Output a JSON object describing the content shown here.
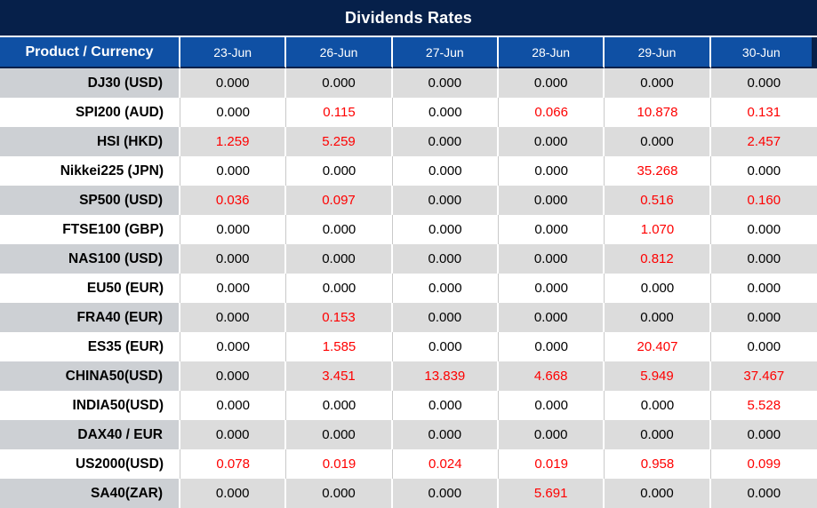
{
  "title": "Dividends Rates",
  "colors": {
    "title_bar_navy": "#06204a",
    "header_blue": "#0f50a4",
    "gray_row_product": "#cdd0d4",
    "gray_row_value": "#dcdcdc",
    "highlight_red": "#fe0000",
    "text_black": "#000000"
  },
  "table": {
    "header": {
      "product_label": "Product / Currency",
      "dates": [
        "23-Jun",
        "26-Jun",
        "27-Jun",
        "28-Jun",
        "29-Jun",
        "30-Jun"
      ]
    },
    "rows": [
      {
        "product": "DJ30 (USD)",
        "values": [
          "0.000",
          "0.000",
          "0.000",
          "0.000",
          "0.000",
          "0.000"
        ],
        "red": [
          false,
          false,
          false,
          false,
          false,
          false
        ]
      },
      {
        "product": "SPI200 (AUD)",
        "values": [
          "0.000",
          "0.115",
          "0.000",
          "0.066",
          "10.878",
          "0.131"
        ],
        "red": [
          false,
          true,
          false,
          true,
          true,
          true
        ]
      },
      {
        "product": "HSI (HKD)",
        "values": [
          "1.259",
          "5.259",
          "0.000",
          "0.000",
          "0.000",
          "2.457"
        ],
        "red": [
          true,
          true,
          false,
          false,
          false,
          true
        ]
      },
      {
        "product": "Nikkei225 (JPN)",
        "values": [
          "0.000",
          "0.000",
          "0.000",
          "0.000",
          "35.268",
          "0.000"
        ],
        "red": [
          false,
          false,
          false,
          false,
          true,
          false
        ]
      },
      {
        "product": "SP500 (USD)",
        "values": [
          "0.036",
          "0.097",
          "0.000",
          "0.000",
          "0.516",
          "0.160"
        ],
        "red": [
          true,
          true,
          false,
          false,
          true,
          true
        ]
      },
      {
        "product": "FTSE100 (GBP)",
        "values": [
          "0.000",
          "0.000",
          "0.000",
          "0.000",
          "1.070",
          "0.000"
        ],
        "red": [
          false,
          false,
          false,
          false,
          true,
          false
        ]
      },
      {
        "product": "NAS100 (USD)",
        "values": [
          "0.000",
          "0.000",
          "0.000",
          "0.000",
          "0.812",
          "0.000"
        ],
        "red": [
          false,
          false,
          false,
          false,
          true,
          false
        ]
      },
      {
        "product": "EU50 (EUR)",
        "values": [
          "0.000",
          "0.000",
          "0.000",
          "0.000",
          "0.000",
          "0.000"
        ],
        "red": [
          false,
          false,
          false,
          false,
          false,
          false
        ]
      },
      {
        "product": "FRA40 (EUR)",
        "values": [
          "0.000",
          "0.153",
          "0.000",
          "0.000",
          "0.000",
          "0.000"
        ],
        "red": [
          false,
          true,
          false,
          false,
          false,
          false
        ]
      },
      {
        "product": "ES35 (EUR)",
        "values": [
          "0.000",
          "1.585",
          "0.000",
          "0.000",
          "20.407",
          "0.000"
        ],
        "red": [
          false,
          true,
          false,
          false,
          true,
          false
        ]
      },
      {
        "product": "CHINA50(USD)",
        "values": [
          "0.000",
          "3.451",
          "13.839",
          "4.668",
          "5.949",
          "37.467"
        ],
        "red": [
          false,
          true,
          true,
          true,
          true,
          true
        ]
      },
      {
        "product": "INDIA50(USD)",
        "values": [
          "0.000",
          "0.000",
          "0.000",
          "0.000",
          "0.000",
          "5.528"
        ],
        "red": [
          false,
          false,
          false,
          false,
          false,
          true
        ]
      },
      {
        "product": "DAX40 / EUR",
        "values": [
          "0.000",
          "0.000",
          "0.000",
          "0.000",
          "0.000",
          "0.000"
        ],
        "red": [
          false,
          false,
          false,
          false,
          false,
          false
        ]
      },
      {
        "product": "US2000(USD)",
        "values": [
          "0.078",
          "0.019",
          "0.024",
          "0.019",
          "0.958",
          "0.099"
        ],
        "red": [
          true,
          true,
          true,
          true,
          true,
          true
        ]
      },
      {
        "product": "SA40(ZAR)",
        "values": [
          "0.000",
          "0.000",
          "0.000",
          "5.691",
          "0.000",
          "0.000"
        ],
        "red": [
          false,
          false,
          false,
          true,
          false,
          false
        ]
      }
    ]
  }
}
